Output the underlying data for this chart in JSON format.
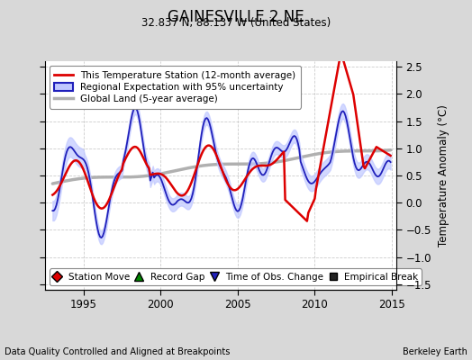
{
  "title": "GAINESVILLE 2 NE",
  "subtitle": "32.837 N, 88.137 W (United States)",
  "ylabel": "Temperature Anomaly (°C)",
  "xlabel_note": "Data Quality Controlled and Aligned at Breakpoints",
  "xlabel_right": "Berkeley Earth",
  "ylim": [
    -1.6,
    2.6
  ],
  "xlim": [
    1992.5,
    2015.3
  ],
  "yticks": [
    -1.5,
    -1.0,
    -0.5,
    0.0,
    0.5,
    1.0,
    1.5,
    2.0,
    2.5
  ],
  "xticks": [
    1995,
    2000,
    2005,
    2010,
    2015
  ],
  "bg_color": "#d8d8d8",
  "plot_bg_color": "#ffffff",
  "station_color": "#dd0000",
  "regional_color": "#2020bb",
  "regional_fill_color": "#c0c8ff",
  "global_color": "#b0b0b0",
  "legend_labels": [
    "This Temperature Station (12-month average)",
    "Regional Expectation with 95% uncertainty",
    "Global Land (5-year average)"
  ],
  "bottom_legend_labels": [
    "Station Move",
    "Record Gap",
    "Time of Obs. Change",
    "Empirical Break"
  ]
}
